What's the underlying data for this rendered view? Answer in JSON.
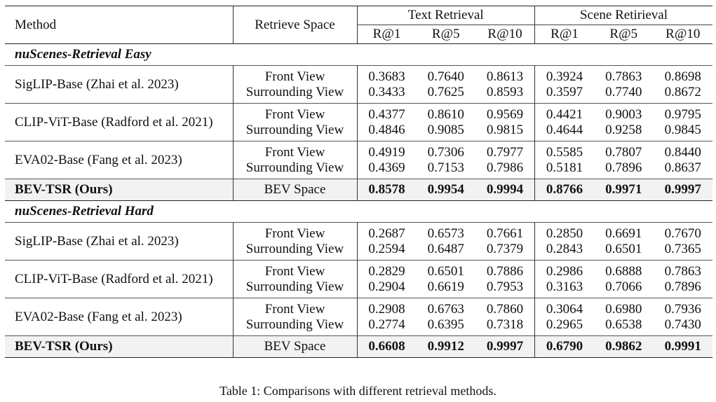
{
  "table": {
    "headers": {
      "method": "Method",
      "retrieve_space": "Retrieve Space",
      "text_retrieval": "Text Retrieval",
      "scene_retrieval": "Scene Retirieval",
      "metrics": [
        "R@1",
        "R@5",
        "R@10",
        "R@1",
        "R@5",
        "R@10"
      ]
    },
    "sections": [
      {
        "title": "nuScenes-Retrieval Easy",
        "rows": [
          {
            "method": "SigLIP-Base (Zhai et al. 2023)",
            "views": [
              "Front View",
              "Surrounding View"
            ],
            "values": [
              [
                "0.3683",
                "0.7640",
                "0.8613",
                "0.3924",
                "0.7863",
                "0.8698"
              ],
              [
                "0.3433",
                "0.7625",
                "0.8593",
                "0.3597",
                "0.7740",
                "0.8672"
              ]
            ]
          },
          {
            "method": "CLIP-ViT-Base (Radford et al. 2021)",
            "views": [
              "Front View",
              "Surrounding View"
            ],
            "values": [
              [
                "0.4377",
                "0.8610",
                "0.9569",
                "0.4421",
                "0.9003",
                "0.9795"
              ],
              [
                "0.4846",
                "0.9085",
                "0.9815",
                "0.4644",
                "0.9258",
                "0.9845"
              ]
            ]
          },
          {
            "method": "EVA02-Base (Fang et al. 2023)",
            "views": [
              "Front View",
              "Surrounding View"
            ],
            "values": [
              [
                "0.4919",
                "0.7306",
                "0.7977",
                "0.5585",
                "0.7807",
                "0.8440"
              ],
              [
                "0.4369",
                "0.7153",
                "0.7986",
                "0.5181",
                "0.7896",
                "0.8637"
              ]
            ]
          }
        ],
        "ours": {
          "method": "BEV-TSR (Ours)",
          "space": "BEV Space",
          "values": [
            "0.8578",
            "0.9954",
            "0.9994",
            "0.8766",
            "0.9971",
            "0.9997"
          ]
        }
      },
      {
        "title": "nuScenes-Retrieval Hard",
        "rows": [
          {
            "method": "SigLIP-Base (Zhai et al. 2023)",
            "views": [
              "Front View",
              "Surrounding View"
            ],
            "values": [
              [
                "0.2687",
                "0.6573",
                "0.7661",
                "0.2850",
                "0.6691",
                "0.7670"
              ],
              [
                "0.2594",
                "0.6487",
                "0.7379",
                "0.2843",
                "0.6501",
                "0.7365"
              ]
            ]
          },
          {
            "method": "CLIP-ViT-Base (Radford et al. 2021)",
            "views": [
              "Front View",
              "Surrounding View"
            ],
            "values": [
              [
                "0.2829",
                "0.6501",
                "0.7886",
                "0.2986",
                "0.6888",
                "0.7863"
              ],
              [
                "0.2904",
                "0.6619",
                "0.7953",
                "0.3163",
                "0.7066",
                "0.7896"
              ]
            ]
          },
          {
            "method": "EVA02-Base (Fang et al. 2023)",
            "views": [
              "Front View",
              "Surrounding View"
            ],
            "values": [
              [
                "0.2908",
                "0.6763",
                "0.7860",
                "0.3064",
                "0.6980",
                "0.7936"
              ],
              [
                "0.2774",
                "0.6395",
                "0.7318",
                "0.2965",
                "0.6538",
                "0.7430"
              ]
            ]
          }
        ],
        "ours": {
          "method": "BEV-TSR (Ours)",
          "space": "BEV Space",
          "values": [
            "0.6608",
            "0.9912",
            "0.9997",
            "0.6790",
            "0.9862",
            "0.9991"
          ]
        }
      }
    ]
  },
  "caption": "Table 1: Comparisons with different retrieval methods."
}
